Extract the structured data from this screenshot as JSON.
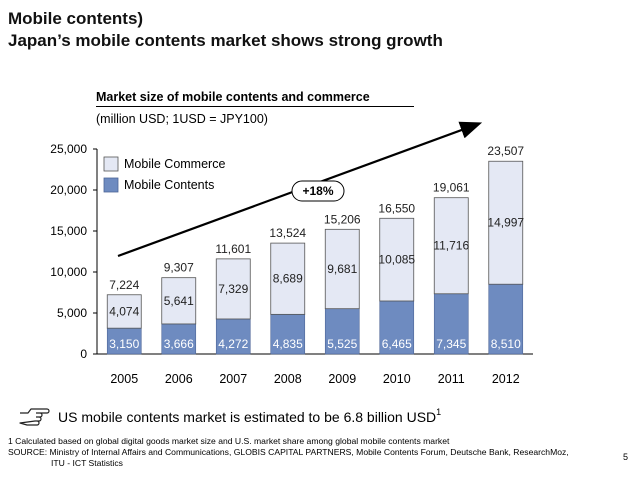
{
  "header": {
    "line1": "Mobile contents)",
    "line2": "Japan’s mobile contents market shows strong growth"
  },
  "chart_data": {
    "type": "bar",
    "stacked": true,
    "title": "Market size of mobile contents and commerce",
    "subtitle": "(million USD; 1USD = JPY100)",
    "categories": [
      "2005",
      "2006",
      "2007",
      "2008",
      "2009",
      "2010",
      "2011",
      "2012"
    ],
    "series": [
      {
        "name": "Mobile Contents",
        "color": "#6E8BC0",
        "values": [
          3150,
          3666,
          4272,
          4835,
          5525,
          6465,
          7345,
          8510
        ],
        "labels": [
          "3,150",
          "3,666",
          "4,272",
          "4,835",
          "5,525",
          "6,465",
          "7,345",
          "8,510"
        ]
      },
      {
        "name": "Mobile Commerce",
        "color": "#E4E8F4",
        "values": [
          4074,
          5641,
          7329,
          8689,
          9681,
          10085,
          11716,
          14997
        ],
        "labels": [
          "4,074",
          "5,641",
          "7,329",
          "8,689",
          "9,681",
          "10,085",
          "11,716",
          "14,997"
        ]
      }
    ],
    "totals": [
      "7,224",
      "9,307",
      "11,601",
      "13,524",
      "15,206",
      "16,550",
      "19,061",
      "23,507"
    ],
    "ylim": [
      0,
      25000
    ],
    "yticks": [
      "0",
      "5,000",
      "10,000",
      "15,000",
      "20,000",
      "25,000"
    ],
    "ytick_values": [
      0,
      5000,
      10000,
      15000,
      20000,
      25000
    ],
    "legend": [
      "Mobile Commerce",
      "Mobile Contents"
    ],
    "legend_position": "top-left",
    "annotation": "+18%"
  },
  "note": {
    "text": "US mobile contents market is estimated to be 6.8 billion USD",
    "sup": "1"
  },
  "footnotes": [
    "1 Calculated based on global digital goods market size and U.S. market share among global mobile contents market",
    "SOURCE: Ministry of Internal Affairs and Communications, GLOBIS CAPITAL PARTNERS, Mobile Contents Forum, Deutsche Bank, ResearchMoz,",
    "ITU - ICT Statistics"
  ],
  "page_number": "5"
}
